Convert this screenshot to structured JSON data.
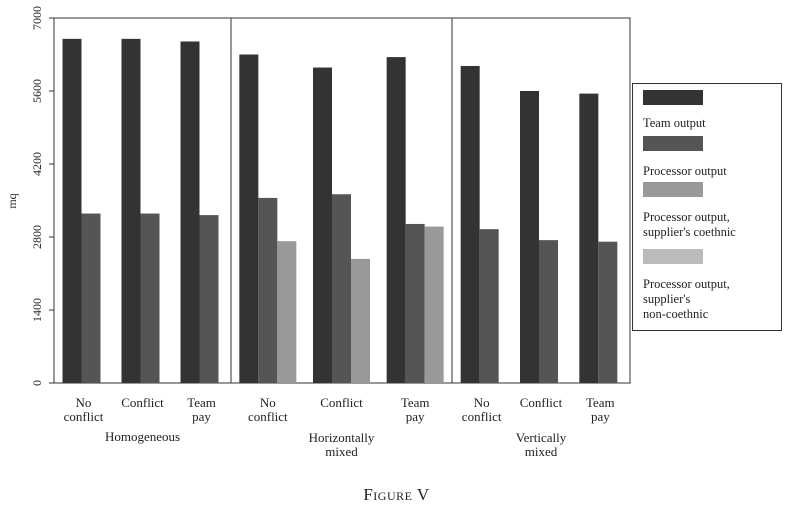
{
  "caption": "Figure V",
  "chart_data": {
    "type": "bar",
    "ylabel": "mq",
    "ylim": [
      0,
      7000
    ],
    "yticks": [
      0,
      1400,
      2800,
      4200,
      5600,
      7000
    ],
    "panels": [
      {
        "name": "Homogeneous",
        "categories": [
          "No\nconflict",
          "Conflict",
          "Team\npay"
        ],
        "series": [
          {
            "values": [
              6600,
              6600,
              6550
            ]
          },
          {
            "values": [
              3250,
              3250,
              3220
            ]
          }
        ]
      },
      {
        "name": "Horizontally\nmixed",
        "categories": [
          "No\nconflict",
          "Conflict",
          "Team\npay"
        ],
        "series": [
          {
            "values": [
              6300,
              6050,
              6250
            ]
          },
          {
            "values": [
              3550,
              3620,
              3050
            ]
          },
          {
            "values": [
              2720,
              2380,
              3000
            ]
          }
        ]
      },
      {
        "name": "Vertically\nmixed",
        "categories": [
          "No\nconflict",
          "Conflict",
          "Team\npay"
        ],
        "series": [
          {
            "values": [
              6080,
              5600,
              5550
            ]
          },
          {
            "values": [
              2950,
              2740,
              2710
            ]
          }
        ]
      }
    ],
    "legend": {
      "position": "right",
      "entries": [
        {
          "label": "Team output",
          "color": "#333333"
        },
        {
          "label": "Processor output",
          "color": "#555555"
        },
        {
          "label": "Processor output,\nsupplier's coethnic",
          "color": "#999999"
        },
        {
          "label": "Processor output,\nsupplier's\nnon-coethnic",
          "color": "#bbbbbb"
        }
      ]
    },
    "colors": [
      "#333333",
      "#555555",
      "#999999",
      "#bbbbbb"
    ]
  }
}
